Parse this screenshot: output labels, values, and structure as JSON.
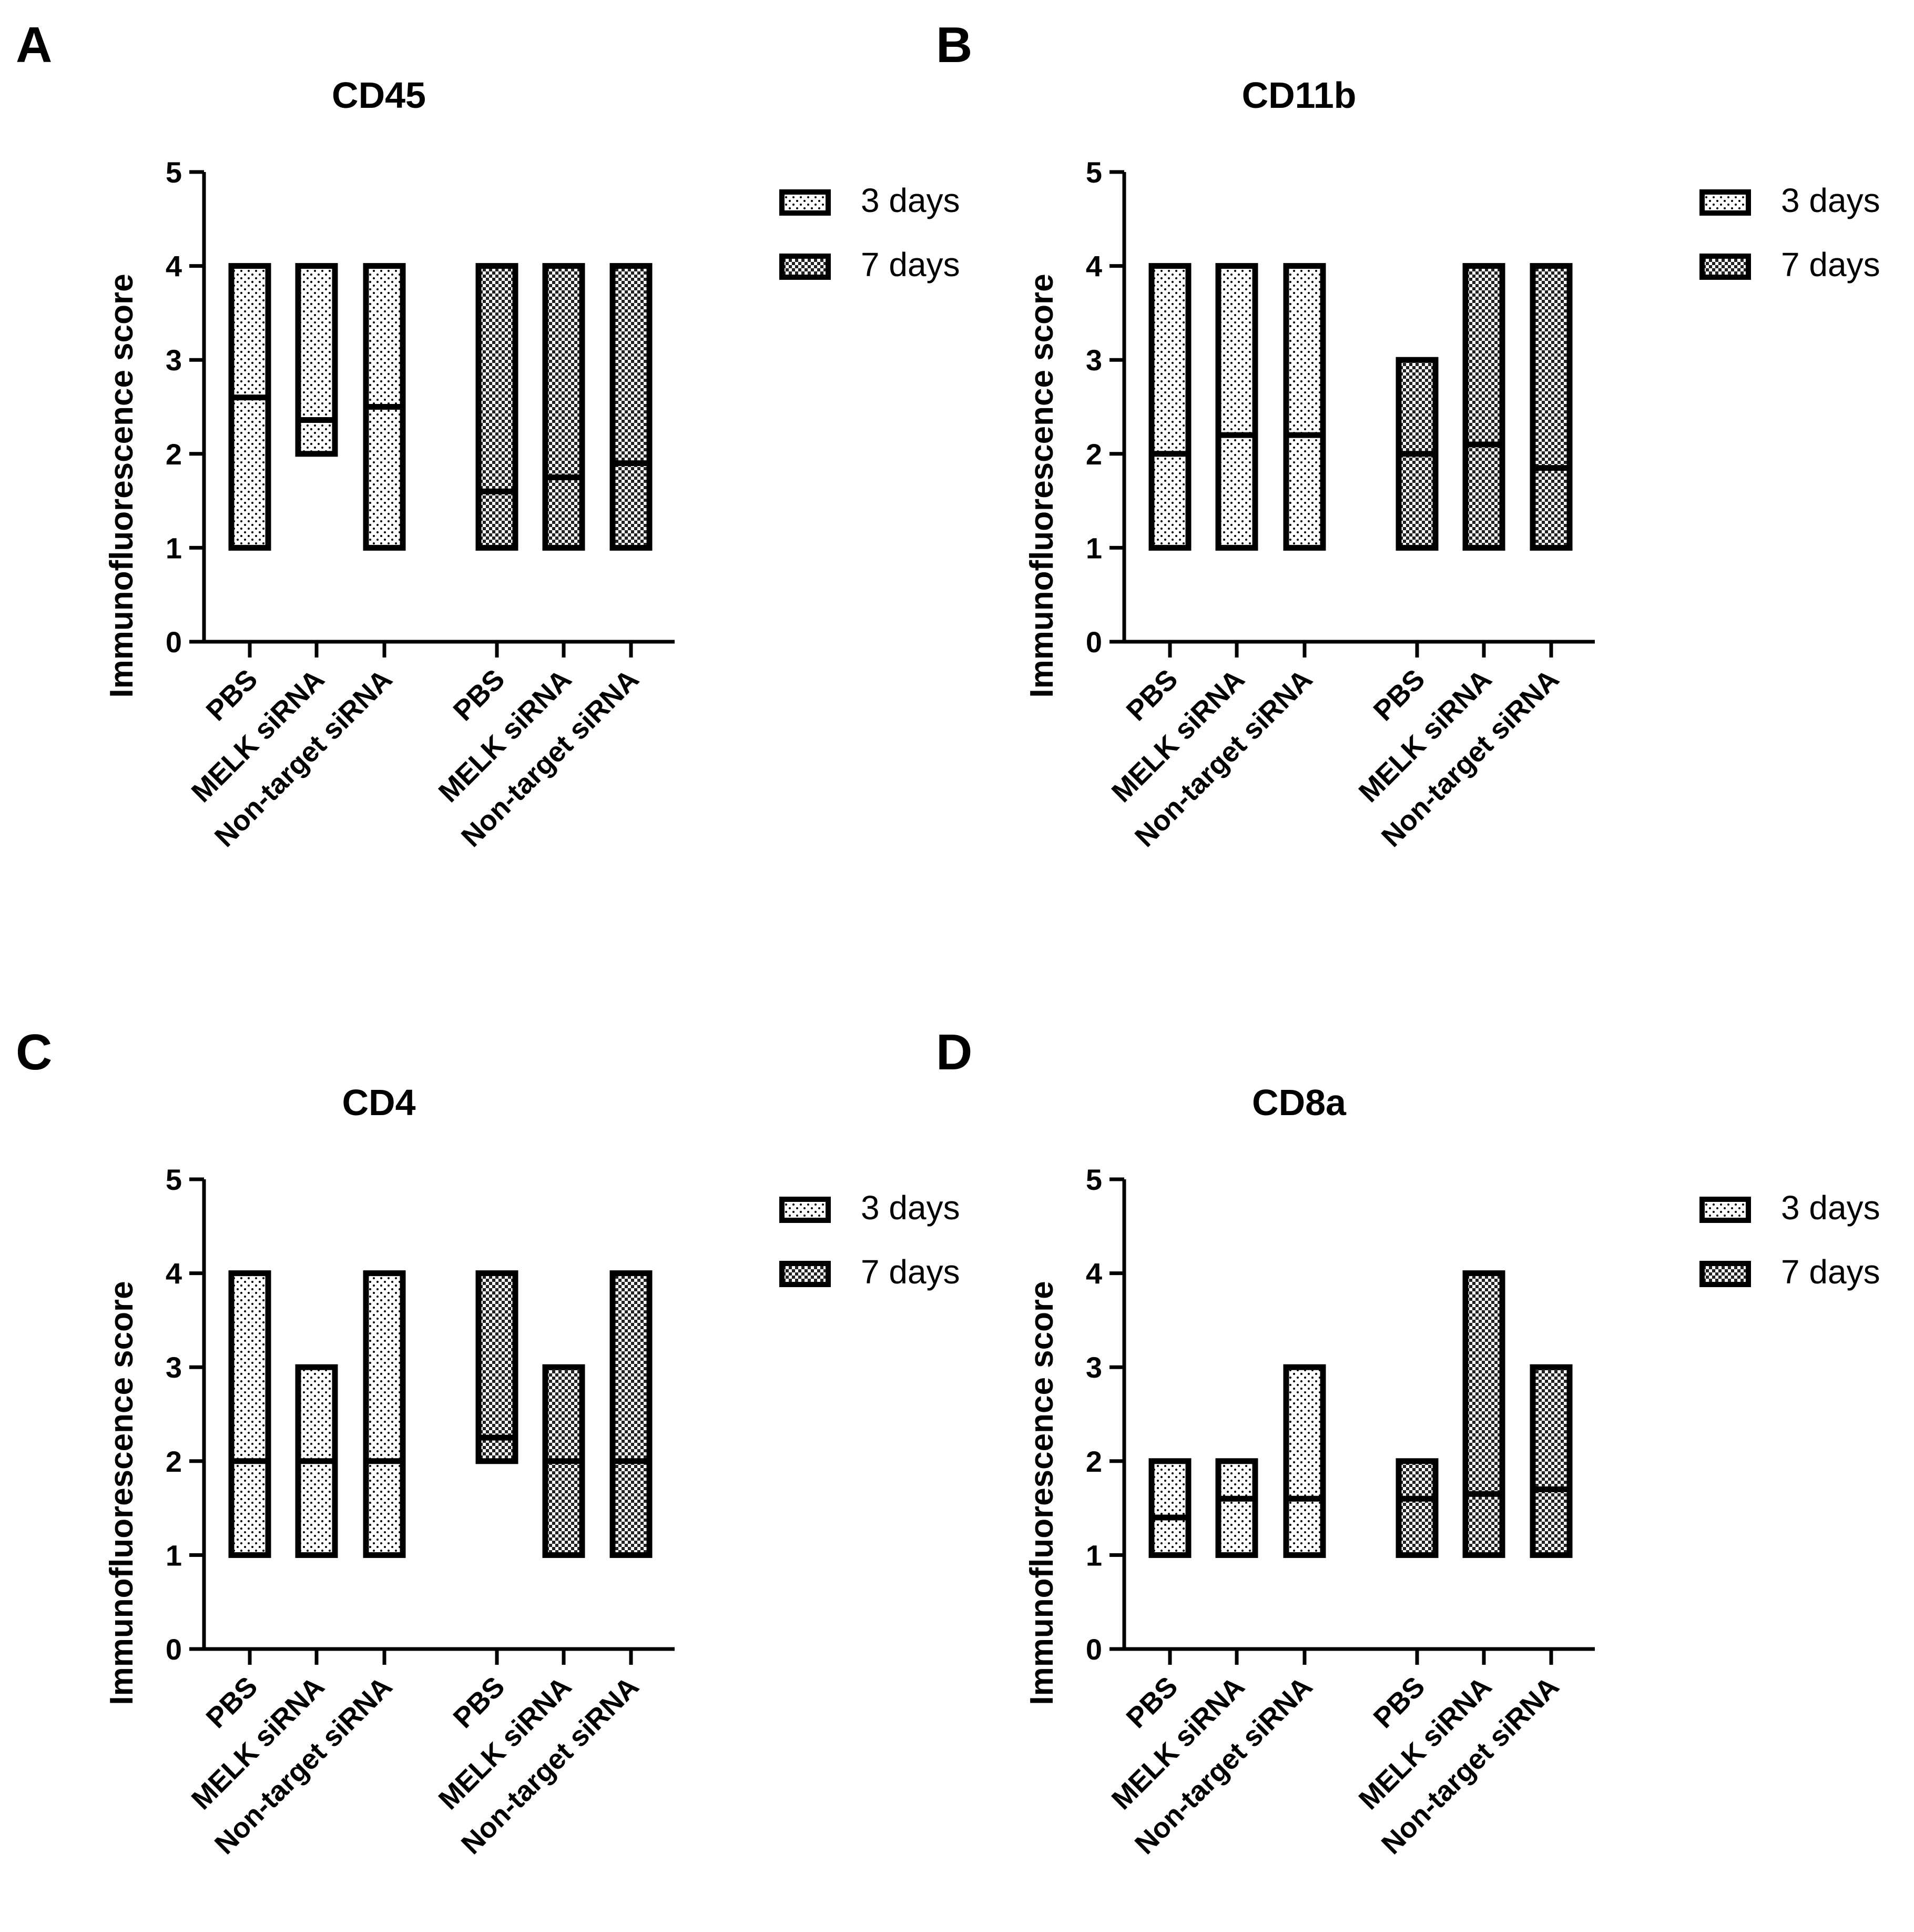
{
  "colors": {
    "ink": "#000000",
    "background": "#ffffff"
  },
  "chart_data": [
    {
      "panel": "A",
      "title": "CD45",
      "type": "floating-bar",
      "ylabel": "Immunofluorescence score",
      "xlabel": "",
      "ylim": [
        0,
        5
      ],
      "yticks": [
        "0",
        "1",
        "2",
        "3",
        "4",
        "5"
      ],
      "legend": {
        "position": "top-right",
        "items": [
          {
            "label": "3 days",
            "pattern": "dots"
          },
          {
            "label": "7 days",
            "pattern": "checker"
          }
        ]
      },
      "categories": [
        "PBS",
        "MELK siRNA",
        "Non-target siRNA",
        "PBS",
        "MELK siRNA",
        "Non-target siRNA"
      ],
      "series": [
        {
          "name": "3 days",
          "pattern": "dots",
          "min": [
            1,
            2,
            1
          ],
          "max": [
            4,
            4,
            4
          ],
          "mean": [
            2.6,
            2.36,
            2.5
          ]
        },
        {
          "name": "7 days",
          "pattern": "checker",
          "min": [
            1,
            1,
            1
          ],
          "max": [
            4,
            4,
            4
          ],
          "mean": [
            1.6,
            1.75,
            1.9
          ]
        }
      ]
    },
    {
      "panel": "B",
      "title": "CD11b",
      "type": "floating-bar",
      "ylabel": "Immunofluorescence score",
      "xlabel": "",
      "ylim": [
        0,
        5
      ],
      "yticks": [
        "0",
        "1",
        "2",
        "3",
        "4",
        "5"
      ],
      "legend": {
        "position": "top-right",
        "items": [
          {
            "label": "3 days",
            "pattern": "dots"
          },
          {
            "label": "7 days",
            "pattern": "checker"
          }
        ]
      },
      "categories": [
        "PBS",
        "MELK siRNA",
        "Non-target siRNA",
        "PBS",
        "MELK siRNA",
        "Non-target siRNA"
      ],
      "series": [
        {
          "name": "3 days",
          "pattern": "dots",
          "min": [
            1,
            1,
            1
          ],
          "max": [
            4,
            4,
            4
          ],
          "mean": [
            2.0,
            2.2,
            2.2
          ]
        },
        {
          "name": "7 days",
          "pattern": "checker",
          "min": [
            1,
            1,
            1
          ],
          "max": [
            3,
            4,
            4
          ],
          "mean": [
            2.0,
            2.1,
            1.85
          ]
        }
      ]
    },
    {
      "panel": "C",
      "title": "CD4",
      "type": "floating-bar",
      "ylabel": "Immunofluorescence score",
      "xlabel": "",
      "ylim": [
        0,
        5
      ],
      "yticks": [
        "0",
        "1",
        "2",
        "3",
        "4",
        "5"
      ],
      "legend": {
        "position": "top-right",
        "items": [
          {
            "label": "3 days",
            "pattern": "dots"
          },
          {
            "label": "7 days",
            "pattern": "checker"
          }
        ]
      },
      "categories": [
        "PBS",
        "MELK siRNA",
        "Non-target siRNA",
        "PBS",
        "MELK siRNA",
        "Non-target siRNA"
      ],
      "series": [
        {
          "name": "3 days",
          "pattern": "dots",
          "min": [
            1,
            1,
            1
          ],
          "max": [
            4,
            3,
            4
          ],
          "mean": [
            2.0,
            2.0,
            2.0
          ]
        },
        {
          "name": "7 days",
          "pattern": "checker",
          "min": [
            2,
            1,
            1
          ],
          "max": [
            4,
            3,
            4
          ],
          "mean": [
            2.25,
            2.0,
            2.0
          ]
        }
      ]
    },
    {
      "panel": "D",
      "title": "CD8a",
      "type": "floating-bar",
      "ylabel": "Immunofluorescence score",
      "xlabel": "",
      "ylim": [
        0,
        5
      ],
      "yticks": [
        "0",
        "1",
        "2",
        "3",
        "4",
        "5"
      ],
      "legend": {
        "position": "top-right",
        "items": [
          {
            "label": "3 days",
            "pattern": "dots"
          },
          {
            "label": "7 days",
            "pattern": "checker"
          }
        ]
      },
      "categories": [
        "PBS",
        "MELK siRNA",
        "Non-target siRNA",
        "PBS",
        "MELK siRNA",
        "Non-target siRNA"
      ],
      "series": [
        {
          "name": "3 days",
          "pattern": "dots",
          "min": [
            1,
            1,
            1
          ],
          "max": [
            2,
            2,
            3
          ],
          "mean": [
            1.4,
            1.6,
            1.6
          ]
        },
        {
          "name": "7 days",
          "pattern": "checker",
          "min": [
            1,
            1,
            1
          ],
          "max": [
            2,
            4,
            3
          ],
          "mean": [
            1.6,
            1.65,
            1.7
          ]
        }
      ]
    }
  ]
}
